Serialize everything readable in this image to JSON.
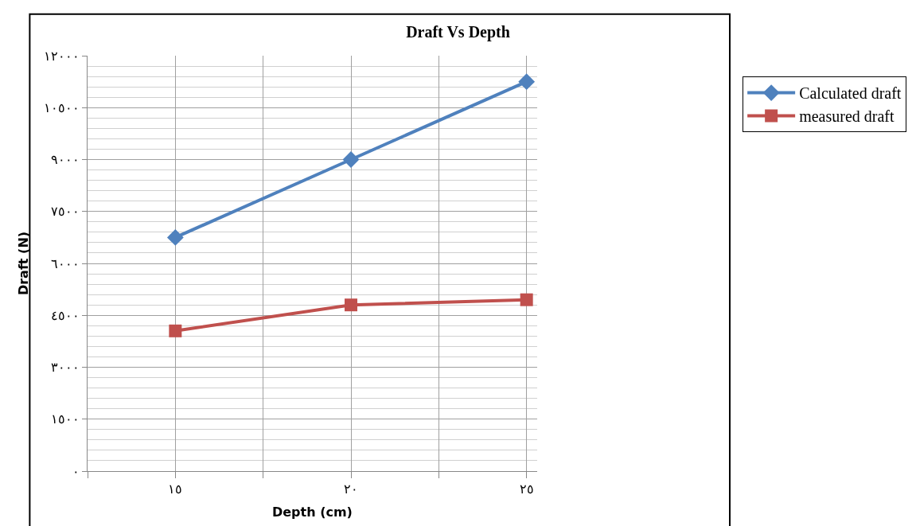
{
  "chart_data": {
    "type": "line",
    "title": "Draft Vs Depth",
    "xlabel": "Depth (cm)",
    "ylabel": "Draft (N)",
    "x": [
      15,
      20,
      25
    ],
    "series": [
      {
        "name": "Calculated draft",
        "color": "#4f81bd",
        "values": [
          6750,
          9000,
          11250
        ],
        "marker": "diamond"
      },
      {
        "name": "measured draft",
        "color": "#c0504d",
        "values": [
          4050,
          4800,
          4950
        ],
        "marker": "square"
      }
    ],
    "xlim": [
      12.5,
      25.3
    ],
    "xticks": [
      {
        "value": 12.5,
        "label": null
      },
      {
        "value": 15,
        "label": "١٥"
      },
      {
        "value": 17.5,
        "label": null
      },
      {
        "value": 20,
        "label": "٢٠"
      },
      {
        "value": 22.5,
        "label": null
      },
      {
        "value": 25,
        "label": "٢٥"
      }
    ],
    "ylim": [
      0,
      12000
    ],
    "yticks": [
      {
        "value": 0,
        "label": "٠"
      },
      {
        "value": 1500,
        "label": "١٥٠٠"
      },
      {
        "value": 3000,
        "label": "٣٠٠٠"
      },
      {
        "value": 4500,
        "label": "٤٥٠٠"
      },
      {
        "value": 6000,
        "label": "٦٠٠٠"
      },
      {
        "value": 7500,
        "label": "٧٥٠٠"
      },
      {
        "value": 9000,
        "label": "٩٠٠٠"
      },
      {
        "value": 10500,
        "label": "١٠٥٠٠"
      },
      {
        "value": 12000,
        "label": "١٢٠٠٠"
      }
    ],
    "grid": true,
    "legend": "right",
    "line_style": "solid"
  }
}
